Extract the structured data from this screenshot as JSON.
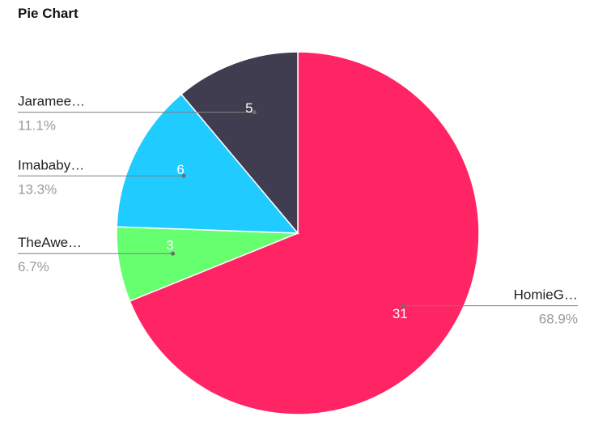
{
  "chart_title": "Pie Chart",
  "chart_data": {
    "type": "pie",
    "title": "Pie Chart",
    "start_angle_deg": 0,
    "direction": "clockwise",
    "slices": [
      {
        "name": "HomieG…",
        "value": 31,
        "percent": "68.9%",
        "color": "#FF2464",
        "label_side": "right"
      },
      {
        "name": "TheAwe…",
        "value": 3,
        "percent": "6.7%",
        "color": "#66FF70",
        "label_side": "left"
      },
      {
        "name": "Imababy…",
        "value": 6,
        "percent": "13.3%",
        "color": "#1FCBFF",
        "label_side": "left"
      },
      {
        "name": "Jaramee…",
        "value": 5,
        "percent": "11.1%",
        "color": "#413D50",
        "label_side": "left"
      }
    ]
  }
}
